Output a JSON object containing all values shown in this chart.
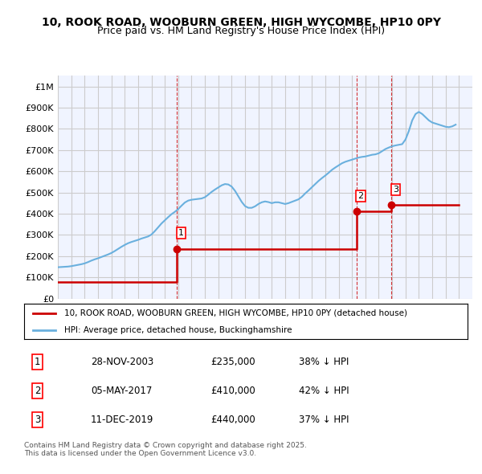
{
  "title": "10, ROOK ROAD, WOOBURN GREEN, HIGH WYCOMBE, HP10 0PY",
  "subtitle": "Price paid vs. HM Land Registry's House Price Index (HPI)",
  "title_fontsize": 11,
  "subtitle_fontsize": 10,
  "x_start_year": 1995,
  "x_end_year": 2026,
  "ylim": [
    0,
    1050000
  ],
  "yticks": [
    0,
    100000,
    200000,
    300000,
    400000,
    500000,
    600000,
    700000,
    800000,
    900000,
    1000000
  ],
  "ytick_labels": [
    "£0",
    "£100K",
    "£200K",
    "£300K",
    "£400K",
    "£500K",
    "£600K",
    "£700K",
    "£800K",
    "£900K",
    "£1M"
  ],
  "hpi_color": "#6ab0de",
  "sale_color": "#cc0000",
  "marker_color": "#cc0000",
  "grid_color": "#cccccc",
  "background_color": "#f0f4ff",
  "sale_dates_decimal": [
    2003.91,
    2017.34,
    2019.95
  ],
  "sale_prices": [
    235000,
    410000,
    440000
  ],
  "sale_labels": [
    "1",
    "2",
    "3"
  ],
  "vline_color": "#cc0000",
  "legend_entries": [
    "10, ROOK ROAD, WOOBURN GREEN, HIGH WYCOMBE, HP10 0PY (detached house)",
    "HPI: Average price, detached house, Buckinghamshire"
  ],
  "table_rows": [
    [
      "1",
      "28-NOV-2003",
      "£235,000",
      "38% ↓ HPI"
    ],
    [
      "2",
      "05-MAY-2017",
      "£410,000",
      "42% ↓ HPI"
    ],
    [
      "3",
      "11-DEC-2019",
      "£440,000",
      "37% ↓ HPI"
    ]
  ],
  "footer": "Contains HM Land Registry data © Crown copyright and database right 2025.\nThis data is licensed under the Open Government Licence v3.0.",
  "hpi_x": [
    1995.0,
    1995.25,
    1995.5,
    1995.75,
    1996.0,
    1996.25,
    1996.5,
    1996.75,
    1997.0,
    1997.25,
    1997.5,
    1997.75,
    1998.0,
    1998.25,
    1998.5,
    1998.75,
    1999.0,
    1999.25,
    1999.5,
    1999.75,
    2000.0,
    2000.25,
    2000.5,
    2000.75,
    2001.0,
    2001.25,
    2001.5,
    2001.75,
    2002.0,
    2002.25,
    2002.5,
    2002.75,
    2003.0,
    2003.25,
    2003.5,
    2003.75,
    2004.0,
    2004.25,
    2004.5,
    2004.75,
    2005.0,
    2005.25,
    2005.5,
    2005.75,
    2006.0,
    2006.25,
    2006.5,
    2006.75,
    2007.0,
    2007.25,
    2007.5,
    2007.75,
    2008.0,
    2008.25,
    2008.5,
    2008.75,
    2009.0,
    2009.25,
    2009.5,
    2009.75,
    2010.0,
    2010.25,
    2010.5,
    2010.75,
    2011.0,
    2011.25,
    2011.5,
    2011.75,
    2012.0,
    2012.25,
    2012.5,
    2012.75,
    2013.0,
    2013.25,
    2013.5,
    2013.75,
    2014.0,
    2014.25,
    2014.5,
    2014.75,
    2015.0,
    2015.25,
    2015.5,
    2015.75,
    2016.0,
    2016.25,
    2016.5,
    2016.75,
    2017.0,
    2017.25,
    2017.5,
    2017.75,
    2018.0,
    2018.25,
    2018.5,
    2018.75,
    2019.0,
    2019.25,
    2019.5,
    2019.75,
    2020.0,
    2020.25,
    2020.5,
    2020.75,
    2021.0,
    2021.25,
    2021.5,
    2021.75,
    2022.0,
    2022.25,
    2022.5,
    2022.75,
    2023.0,
    2023.25,
    2023.5,
    2023.75,
    2024.0,
    2024.25,
    2024.5,
    2024.75
  ],
  "hpi_y": [
    148000,
    149000,
    150000,
    151000,
    153000,
    156000,
    159000,
    162000,
    166000,
    172000,
    179000,
    185000,
    190000,
    196000,
    202000,
    208000,
    215000,
    224000,
    234000,
    244000,
    253000,
    261000,
    267000,
    272000,
    277000,
    283000,
    288000,
    293000,
    302000,
    318000,
    336000,
    354000,
    369000,
    384000,
    398000,
    409000,
    422000,
    438000,
    453000,
    462000,
    466000,
    468000,
    470000,
    472000,
    478000,
    490000,
    503000,
    514000,
    524000,
    534000,
    540000,
    538000,
    528000,
    508000,
    482000,
    456000,
    436000,
    428000,
    428000,
    435000,
    446000,
    454000,
    458000,
    455000,
    450000,
    454000,
    454000,
    450000,
    446000,
    450000,
    456000,
    462000,
    468000,
    480000,
    496000,
    510000,
    525000,
    540000,
    555000,
    568000,
    580000,
    593000,
    607000,
    618000,
    628000,
    638000,
    645000,
    650000,
    655000,
    660000,
    665000,
    668000,
    670000,
    674000,
    678000,
    680000,
    685000,
    695000,
    705000,
    712000,
    718000,
    722000,
    725000,
    728000,
    750000,
    790000,
    840000,
    870000,
    880000,
    870000,
    855000,
    840000,
    830000,
    825000,
    820000,
    815000,
    810000,
    808000,
    812000,
    820000
  ],
  "sale_line_x": [
    1995.0,
    2003.91,
    2003.91,
    2017.34,
    2017.34,
    2019.95,
    2019.95,
    2025.0
  ],
  "sale_line_y": [
    80000,
    80000,
    235000,
    235000,
    410000,
    410000,
    440000,
    440000
  ]
}
